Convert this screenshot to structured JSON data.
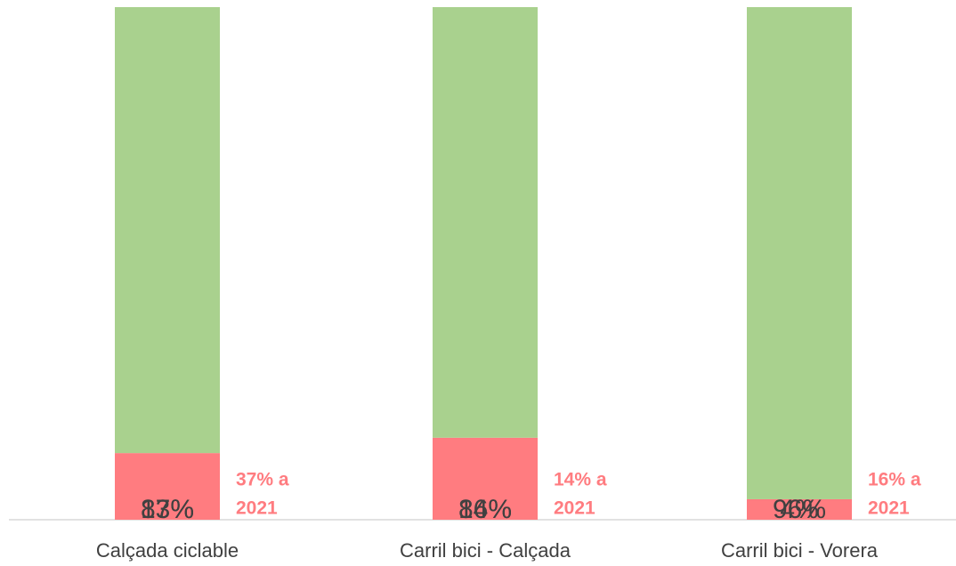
{
  "chart_data": {
    "type": "stacked_bar",
    "categories": [
      "Calçada ciclable",
      "Carril bici - Calçada",
      "Carril bici - Vorera"
    ],
    "series": [
      {
        "color": "#ff7c80",
        "values": [
          13,
          16,
          4
        ],
        "value_labels": [
          "13%",
          "16%",
          "4%"
        ]
      },
      {
        "color": "#a9d18e",
        "values": [
          87,
          84,
          96
        ],
        "value_labels": [
          "87%",
          "84%",
          "96%"
        ]
      }
    ],
    "annotations": [
      [
        "37% a",
        "2021"
      ],
      [
        "14% a",
        "2021"
      ],
      [
        "16% a",
        "2021"
      ]
    ],
    "annotation_color": "#ff7c80",
    "ylim": [
      0,
      100
    ]
  }
}
